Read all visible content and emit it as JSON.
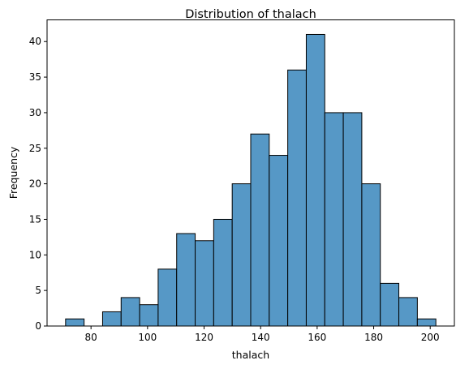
{
  "chart_data": {
    "type": "bar",
    "title": "Distribution of thalach",
    "xlabel": "thalach",
    "ylabel": "Frequency",
    "bin_edges": [
      71,
      77.55,
      84.1,
      90.65,
      97.2,
      103.75,
      110.3,
      116.85,
      123.4,
      129.95,
      136.5,
      143.05,
      149.6,
      156.15,
      162.7,
      169.25,
      175.8,
      182.35,
      188.9,
      195.45,
      202
    ],
    "values": [
      1,
      0,
      2,
      4,
      3,
      8,
      13,
      12,
      15,
      20,
      27,
      24,
      36,
      41,
      30,
      30,
      20,
      6,
      4,
      1
    ],
    "xlim": [
      64.45,
      208.55
    ],
    "ylim": [
      0,
      43.05
    ],
    "x_ticks": [
      80,
      100,
      120,
      140,
      160,
      180,
      200
    ],
    "y_ticks": [
      0,
      5,
      10,
      15,
      20,
      25,
      30,
      35,
      40
    ],
    "bar_color": "#5698c6",
    "edge_color": "#000000",
    "grid": false,
    "legend": "none"
  }
}
